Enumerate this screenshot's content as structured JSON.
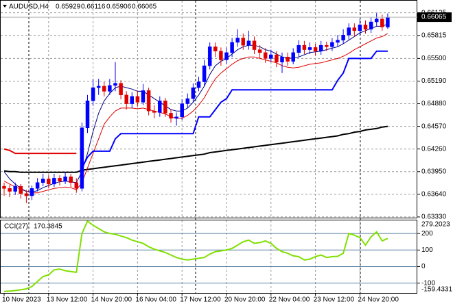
{
  "chart_data": [
    {
      "type": "candlestick",
      "title": "AUDUSD,H4",
      "up_color": "#0000ff",
      "down_color": "#e00000",
      "grid": true,
      "categories": [
        "10 Nov 2023",
        null,
        null,
        null,
        null,
        null,
        null,
        null,
        "13 Nov 12:00",
        null,
        null,
        null,
        null,
        null,
        null,
        null,
        "14 Nov 20:00",
        null,
        null,
        null,
        null,
        null,
        null,
        null,
        "16 Nov 04:00",
        null,
        null,
        null,
        null,
        null,
        null,
        null,
        "17 Nov 12:00",
        null,
        null,
        null,
        null,
        null,
        null,
        null,
        "20 Nov 20:00",
        null,
        null,
        null,
        null,
        null,
        null,
        null,
        "22 Nov 04:00",
        null,
        null,
        null,
        null,
        null,
        null,
        null,
        "23 Nov 12:00",
        null,
        null,
        null,
        null,
        null,
        null,
        null,
        "24 Nov 20:00",
        null,
        null,
        null,
        null,
        null
      ],
      "open": [
        0.6375,
        0.6372,
        0.6368,
        0.6375,
        0.6365,
        0.6362,
        0.6372,
        0.638,
        0.6385,
        0.6378,
        0.6386,
        0.6382,
        0.6388,
        0.638,
        0.6372,
        0.6455,
        0.6492,
        0.651,
        0.6512,
        0.6505,
        0.6513,
        0.6516,
        0.65,
        0.6488,
        0.6498,
        0.649,
        0.6506,
        0.6478,
        0.6476,
        0.6492,
        0.6475,
        0.6468,
        0.647,
        0.6488,
        0.6495,
        0.651,
        0.6518,
        0.654,
        0.6566,
        0.656,
        0.6548,
        0.6558,
        0.6572,
        0.6578,
        0.6568,
        0.6574,
        0.6562,
        0.6558,
        0.655,
        0.6555,
        0.6545,
        0.6552,
        0.6546,
        0.6558,
        0.6568,
        0.6562,
        0.6565,
        0.656,
        0.6568,
        0.6566,
        0.6572,
        0.6575,
        0.6582,
        0.6592,
        0.6588,
        0.6596,
        0.659,
        0.66,
        0.6604,
        0.65929
      ],
      "high": [
        0.638,
        0.6377,
        0.638,
        0.6378,
        0.637,
        0.6376,
        0.6386,
        0.6392,
        0.639,
        0.6392,
        0.639,
        0.6394,
        0.6392,
        0.6386,
        0.6462,
        0.65,
        0.6522,
        0.6522,
        0.6518,
        0.6522,
        0.6545,
        0.652,
        0.6505,
        0.6504,
        0.6506,
        0.6515,
        0.651,
        0.6486,
        0.6498,
        0.6496,
        0.648,
        0.6476,
        0.6494,
        0.6502,
        0.6516,
        0.6525,
        0.6548,
        0.6572,
        0.6572,
        0.6565,
        0.6565,
        0.6578,
        0.659,
        0.6584,
        0.6588,
        0.658,
        0.6568,
        0.6564,
        0.6562,
        0.656,
        0.6558,
        0.6558,
        0.6564,
        0.6575,
        0.6574,
        0.6572,
        0.657,
        0.6574,
        0.6573,
        0.6578,
        0.6582,
        0.659,
        0.6598,
        0.6598,
        0.6604,
        0.6602,
        0.6606,
        0.6612,
        0.661,
        0.66116
      ],
      "low": [
        0.6362,
        0.636,
        0.6363,
        0.6358,
        0.6352,
        0.6356,
        0.6368,
        0.6375,
        0.6372,
        0.6374,
        0.6376,
        0.6378,
        0.6374,
        0.6366,
        0.6368,
        0.6448,
        0.6485,
        0.65,
        0.6498,
        0.65,
        0.6505,
        0.6494,
        0.648,
        0.6482,
        0.6484,
        0.6486,
        0.6472,
        0.6468,
        0.647,
        0.647,
        0.6462,
        0.6458,
        0.6466,
        0.6482,
        0.649,
        0.6505,
        0.6512,
        0.6535,
        0.6552,
        0.654,
        0.6542,
        0.6552,
        0.6566,
        0.6562,
        0.6562,
        0.6556,
        0.655,
        0.6544,
        0.6545,
        0.6538,
        0.653,
        0.654,
        0.6542,
        0.6552,
        0.6556,
        0.6556,
        0.6554,
        0.6555,
        0.656,
        0.656,
        0.6566,
        0.657,
        0.6576,
        0.658,
        0.6582,
        0.6584,
        0.6585,
        0.6594,
        0.6588,
        0.65906
      ],
      "close": [
        0.6372,
        0.6368,
        0.6375,
        0.6365,
        0.6362,
        0.6372,
        0.638,
        0.6385,
        0.6378,
        0.6386,
        0.6382,
        0.6388,
        0.638,
        0.6372,
        0.6455,
        0.6492,
        0.651,
        0.6512,
        0.6505,
        0.6513,
        0.6516,
        0.65,
        0.6488,
        0.6498,
        0.649,
        0.6506,
        0.6478,
        0.6476,
        0.6492,
        0.6475,
        0.6468,
        0.647,
        0.6488,
        0.6495,
        0.651,
        0.6518,
        0.654,
        0.6566,
        0.656,
        0.6548,
        0.6558,
        0.6572,
        0.6578,
        0.6568,
        0.6574,
        0.6562,
        0.6558,
        0.655,
        0.6555,
        0.6545,
        0.6552,
        0.6546,
        0.6558,
        0.6568,
        0.6562,
        0.6565,
        0.656,
        0.6568,
        0.6566,
        0.6572,
        0.6575,
        0.6582,
        0.6592,
        0.6588,
        0.6596,
        0.659,
        0.66,
        0.6604,
        0.6593,
        0.66065
      ],
      "series": [
        {
          "color": "#000000",
          "width": 2,
          "values": [
            0.6396,
            0.6395,
            0.6395,
            0.6394,
            0.6394,
            0.6394,
            0.6394,
            0.6394,
            0.6394,
            0.6394,
            0.6394,
            0.6394,
            0.6394,
            0.6394,
            0.6397,
            0.6398,
            0.6399,
            0.64,
            0.6401,
            0.6402,
            0.6403,
            0.6404,
            0.6405,
            0.6406,
            0.6407,
            0.6408,
            0.6409,
            0.641,
            0.6411,
            0.6412,
            0.6413,
            0.6414,
            0.6415,
            0.6416,
            0.6417,
            0.6418,
            0.6419,
            0.6421,
            0.6422,
            0.6423,
            0.6424,
            0.6425,
            0.6426,
            0.6427,
            0.6428,
            0.6429,
            0.643,
            0.6431,
            0.6432,
            0.6433,
            0.6434,
            0.6435,
            0.6436,
            0.6437,
            0.6438,
            0.6439,
            0.644,
            0.6441,
            0.6442,
            0.6443,
            0.6444,
            0.6446,
            0.6447,
            0.6449,
            0.645,
            0.6452,
            0.6453,
            0.6454,
            0.6456,
            0.6457
          ]
        },
        {
          "color": "#e00000",
          "width": 1,
          "values": [
            0.6382,
            0.6378,
            0.6374,
            0.6371,
            0.6368,
            0.6366,
            0.6366,
            0.6368,
            0.637,
            0.6372,
            0.6373,
            0.6374,
            0.6373,
            0.637,
            0.638,
            0.64,
            0.642,
            0.644,
            0.646,
            0.647,
            0.6478,
            0.6482,
            0.6482,
            0.6482,
            0.6481,
            0.6482,
            0.648,
            0.6478,
            0.6476,
            0.6474,
            0.647,
            0.6468,
            0.6468,
            0.6472,
            0.6478,
            0.6486,
            0.6496,
            0.651,
            0.6522,
            0.653,
            0.6536,
            0.6542,
            0.6547,
            0.655,
            0.6552,
            0.6552,
            0.655,
            0.6548,
            0.6546,
            0.6544,
            0.654,
            0.6538,
            0.6537,
            0.6538,
            0.654,
            0.6542,
            0.6543,
            0.6544,
            0.6546,
            0.6548,
            0.655,
            0.6553,
            0.6557,
            0.6562,
            0.6566,
            0.657,
            0.6574,
            0.6578,
            0.658,
            0.6584
          ]
        },
        {
          "color": "#000080",
          "width": 1,
          "values": [
            0.6395,
            0.6385,
            0.6378,
            0.6372,
            0.6368,
            0.6367,
            0.6369,
            0.6373,
            0.6376,
            0.6379,
            0.6381,
            0.6382,
            0.6381,
            0.638,
            0.6395,
            0.642,
            0.645,
            0.6475,
            0.6492,
            0.6502,
            0.651,
            0.6512,
            0.651,
            0.6508,
            0.6505,
            0.6505,
            0.65,
            0.6495,
            0.649,
            0.6485,
            0.648,
            0.6478,
            0.6478,
            0.6482,
            0.649,
            0.65,
            0.6512,
            0.6528,
            0.654,
            0.6546,
            0.655,
            0.6556,
            0.6562,
            0.6566,
            0.6568,
            0.6568,
            0.6566,
            0.6562,
            0.656,
            0.6556,
            0.6552,
            0.6551,
            0.655,
            0.6552,
            0.6555,
            0.6558,
            0.6559,
            0.656,
            0.6562,
            0.6564,
            0.6566,
            0.657,
            0.6575,
            0.658,
            0.6585,
            0.6588,
            0.6591,
            0.6594,
            0.6594,
            0.6597
          ]
        },
        {
          "color": "#e00000",
          "width": 2,
          "values": [
            0.6426,
            0.6424,
            0.642,
            0.642,
            0.642,
            0.642,
            0.642,
            0.642,
            0.642,
            0.642,
            0.642,
            0.642,
            0.642,
            0.642,
            null,
            null,
            null,
            null,
            null,
            null,
            null,
            null,
            null,
            null,
            null,
            null,
            null,
            null,
            null,
            null,
            null,
            null,
            null,
            null,
            null,
            null,
            null,
            null,
            null,
            null,
            null,
            null,
            null,
            null,
            null,
            null,
            null,
            null,
            null,
            null,
            null,
            null,
            null,
            null,
            null,
            null,
            null,
            null,
            null,
            null,
            null,
            null,
            null,
            null,
            null,
            null,
            null,
            null,
            null,
            null
          ]
        },
        {
          "color": "#0000ff",
          "width": 2,
          "values": [
            null,
            null,
            null,
            null,
            null,
            null,
            null,
            null,
            null,
            null,
            null,
            null,
            null,
            null,
            0.64,
            0.6415,
            0.6423,
            0.6423,
            0.6423,
            0.6423,
            0.644,
            0.6447,
            0.6447,
            0.6447,
            0.6447,
            0.6447,
            0.6447,
            0.6447,
            0.6447,
            0.6447,
            0.6447,
            0.6447,
            0.6447,
            0.6447,
            0.6447,
            0.647,
            0.647,
            0.647,
            0.648,
            0.649,
            0.6495,
            0.6507,
            0.6507,
            0.6507,
            0.6507,
            0.6507,
            0.6507,
            0.6507,
            0.6507,
            0.6507,
            0.6507,
            0.6507,
            0.6507,
            0.6507,
            0.6507,
            0.6507,
            0.6507,
            0.6507,
            0.6507,
            0.6507,
            0.652,
            0.653,
            0.655,
            0.655,
            0.655,
            0.655,
            0.655,
            0.656,
            0.656,
            0.656
          ]
        }
      ],
      "ylim": [
        0.6332,
        0.663
      ],
      "yticks": [
        {
          "value": 0.6333,
          "label": "0.63330"
        },
        {
          "value": 0.6364,
          "label": "0.63640"
        },
        {
          "value": 0.6395,
          "label": "0.63950"
        },
        {
          "value": 0.6426,
          "label": "0.64260"
        },
        {
          "value": 0.6457,
          "label": "0.64570"
        },
        {
          "value": 0.6488,
          "label": "0.64880"
        },
        {
          "value": 0.6519,
          "label": "0.65190"
        },
        {
          "value": 0.655,
          "label": "0.65500"
        },
        0.65815,
        0.66125
      ]
    },
    {
      "type": "line",
      "title": "CCI(27)",
      "color": "#7fe000",
      "level_color": "#5a7fa0",
      "values": [
        -150,
        -148,
        -145,
        -140,
        -135,
        -120,
        -90,
        -60,
        -50,
        -20,
        -15,
        -25,
        -30,
        -35,
        200,
        275,
        250,
        230,
        210,
        200,
        195,
        185,
        175,
        160,
        150,
        140,
        120,
        105,
        95,
        85,
        70,
        55,
        45,
        40,
        45,
        50,
        55,
        75,
        90,
        95,
        100,
        110,
        130,
        150,
        160,
        140,
        145,
        155,
        140,
        110,
        90,
        80,
        65,
        60,
        40,
        45,
        60,
        70,
        55,
        60,
        62,
        80,
        200,
        190,
        175,
        130,
        180,
        210,
        155,
        170.3845
      ],
      "ylim": [
        -159.4331,
        279.2023
      ],
      "yticks": [
        -100,
        0,
        100,
        200
      ]
    }
  ]
}
